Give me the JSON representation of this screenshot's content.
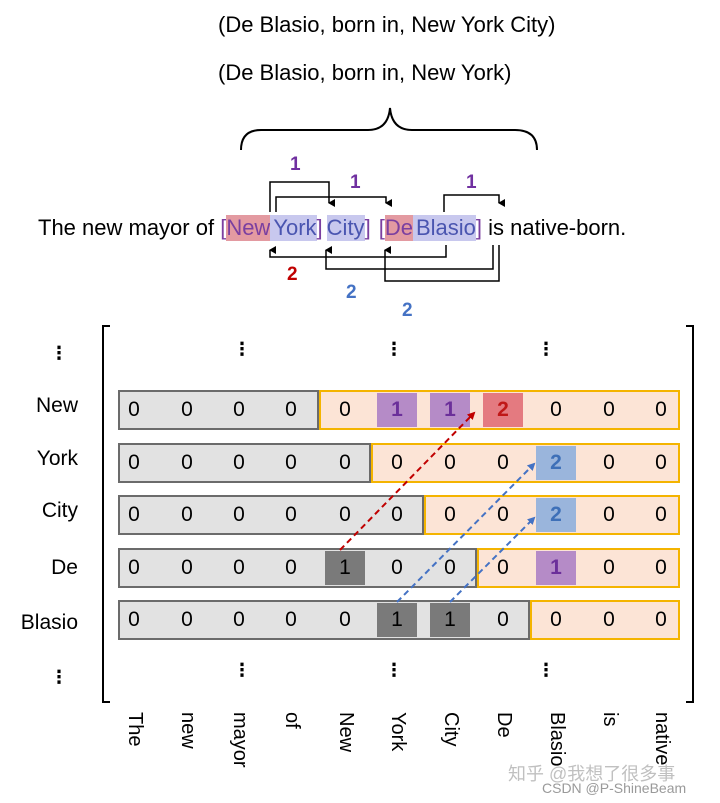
{
  "triples": [
    "(De Blasio, born in, New York City)",
    "(De Blasio, born in, New York)"
  ],
  "sentence": {
    "prefix": "The new mayor of ",
    "open1": "[",
    "tok_new": "New",
    "tok_york": "York",
    "close1": "]",
    "tok_city": "City",
    "close2": "]",
    "open2": "[",
    "tok_de": "De",
    "tok_blasio": "Blasio",
    "close3": "]",
    "suffix": " is native-born."
  },
  "link_labels": {
    "top_left": "1",
    "top_middle": "1",
    "top_right": "1",
    "bottom_red": "2",
    "bottom_blue1": "2",
    "bottom_blue2": "2"
  },
  "ellipsis": "⋮",
  "row_labels": [
    "New",
    "York",
    "City",
    "De",
    "Blasio"
  ],
  "col_labels": [
    "The",
    "new",
    "mayor",
    "of",
    "New",
    "York",
    "City",
    "De",
    "Blasio",
    "is",
    "native"
  ],
  "matrix": [
    [
      "0",
      "0",
      "0",
      "0",
      "0",
      "1",
      "1",
      "2",
      "0",
      "0",
      "0"
    ],
    [
      "0",
      "0",
      "0",
      "0",
      "0",
      "0",
      "0",
      "0",
      "2",
      "0",
      "0"
    ],
    [
      "0",
      "0",
      "0",
      "0",
      "0",
      "0",
      "0",
      "0",
      "2",
      "0",
      "0"
    ],
    [
      "0",
      "0",
      "0",
      "0",
      "1",
      "0",
      "0",
      "0",
      "1",
      "0",
      "0"
    ],
    [
      "0",
      "0",
      "0",
      "0",
      "0",
      "1",
      "1",
      "0",
      "0",
      "0",
      "0"
    ]
  ],
  "highlights": {
    "0-5": "purple",
    "0-6": "purple",
    "0-7": "red",
    "1-8": "blue",
    "2-8": "blue",
    "3-8": "purple",
    "3-4": "dark",
    "4-5": "dark",
    "4-6": "dark"
  },
  "colors": {
    "purple": "#7030a0",
    "red": "#c00000",
    "blue": "#4472c4",
    "gray_row": "#e2e2e2",
    "peach_row": "#fce4d6",
    "gold_border": "#f4b400"
  },
  "watermark": "知乎 @我想了很多事",
  "watermark2": "CSDN @P-ShineBeam"
}
